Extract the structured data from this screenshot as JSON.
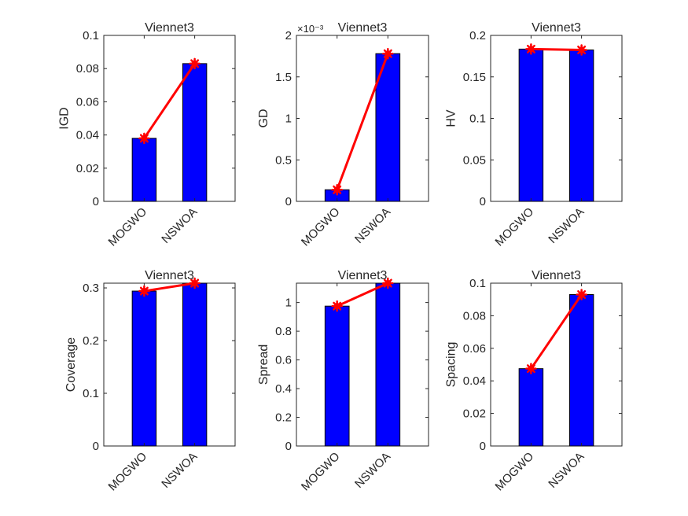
{
  "figure": {
    "background": "#ffffff",
    "bar_color": "#0000ff",
    "line_color": "#ff0000"
  },
  "chart_data": [
    {
      "type": "bar",
      "title": "Viennet3",
      "xlabel": "",
      "ylabel": "IGD",
      "categories": [
        "MOGWO",
        "NSWOA"
      ],
      "values": [
        0.038,
        0.083
      ],
      "overlay_line": {
        "type": "line",
        "marker": "asterisk",
        "values": [
          0.038,
          0.083
        ]
      },
      "ylim": [
        0,
        0.1
      ],
      "yticks": [
        0,
        0.02,
        0.04,
        0.06,
        0.08,
        0.1
      ],
      "ytick_labels": [
        "0",
        "0.02",
        "0.04",
        "0.06",
        "0.08",
        "0.1"
      ],
      "y_exponent_label": "",
      "grid": false
    },
    {
      "type": "bar",
      "title": "Viennet3",
      "xlabel": "",
      "ylabel": "GD",
      "categories": [
        "MOGWO",
        "NSWOA"
      ],
      "values": [
        0.00014,
        0.00178
      ],
      "overlay_line": {
        "type": "line",
        "marker": "asterisk",
        "values": [
          0.00014,
          0.00178
        ]
      },
      "ylim": [
        0,
        0.002
      ],
      "yticks": [
        0,
        0.0005,
        0.001,
        0.0015,
        0.002
      ],
      "ytick_labels": [
        "0",
        "0.5",
        "1",
        "1.5",
        "2"
      ],
      "y_exponent_label": "×10⁻³",
      "grid": false
    },
    {
      "type": "bar",
      "title": "Viennet3",
      "xlabel": "",
      "ylabel": "HV",
      "categories": [
        "MOGWO",
        "NSWOA"
      ],
      "values": [
        0.1835,
        0.1825
      ],
      "overlay_line": {
        "type": "line",
        "marker": "asterisk",
        "values": [
          0.1835,
          0.1825
        ]
      },
      "ylim": [
        0,
        0.2
      ],
      "yticks": [
        0,
        0.05,
        0.1,
        0.15,
        0.2
      ],
      "ytick_labels": [
        "0",
        "0.05",
        "0.1",
        "0.15",
        "0.2"
      ],
      "y_exponent_label": "",
      "grid": false
    },
    {
      "type": "bar",
      "title": "Viennet3",
      "xlabel": "",
      "ylabel": "Coverage",
      "categories": [
        "MOGWO",
        "NSWOA"
      ],
      "values": [
        0.294,
        0.309
      ],
      "overlay_line": {
        "type": "line",
        "marker": "asterisk",
        "values": [
          0.294,
          0.309
        ]
      },
      "ylim": [
        0,
        0.309
      ],
      "yticks": [
        0,
        0.1,
        0.2,
        0.3
      ],
      "ytick_labels": [
        "0",
        "0.1",
        "0.2",
        "0.3"
      ],
      "y_exponent_label": "",
      "grid": false
    },
    {
      "type": "bar",
      "title": "Viennet3",
      "xlabel": "",
      "ylabel": "Spread",
      "categories": [
        "MOGWO",
        "NSWOA"
      ],
      "values": [
        0.975,
        1.135
      ],
      "overlay_line": {
        "type": "line",
        "marker": "asterisk",
        "values": [
          0.975,
          1.135
        ]
      },
      "ylim": [
        0,
        1.135
      ],
      "yticks": [
        0,
        0.2,
        0.4,
        0.6,
        0.8,
        1
      ],
      "ytick_labels": [
        "0",
        "0.2",
        "0.4",
        "0.6",
        "0.8",
        "1"
      ],
      "y_exponent_label": "",
      "grid": false
    },
    {
      "type": "bar",
      "title": "Viennet3",
      "xlabel": "",
      "ylabel": "Spacing",
      "categories": [
        "MOGWO",
        "NSWOA"
      ],
      "values": [
        0.0475,
        0.093
      ],
      "overlay_line": {
        "type": "line",
        "marker": "asterisk",
        "values": [
          0.0475,
          0.093
        ]
      },
      "ylim": [
        0,
        0.1
      ],
      "yticks": [
        0,
        0.02,
        0.04,
        0.06,
        0.08,
        0.1
      ],
      "ytick_labels": [
        "0",
        "0.02",
        "0.04",
        "0.06",
        "0.08",
        "0.1"
      ],
      "y_exponent_label": "",
      "grid": false
    }
  ]
}
